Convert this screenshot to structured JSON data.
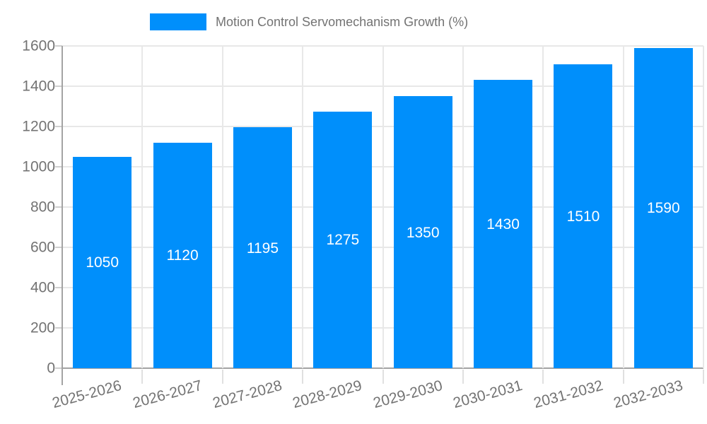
{
  "legend": {
    "items": [
      {
        "label": "Motion Control Servomechanism Growth (%)",
        "color": "#008FFB"
      }
    ]
  },
  "chart_data": {
    "type": "bar",
    "title": "Motion Control Servomechanism Growth (%)",
    "categories": [
      "2025-2026",
      "2026-2027",
      "2027-2028",
      "2028-2029",
      "2029-2030",
      "2030-2031",
      "2031-2032",
      "2032-2033"
    ],
    "values": [
      1050,
      1120,
      1195,
      1275,
      1350,
      1430,
      1510,
      1590
    ],
    "xlabel": "",
    "ylabel": "",
    "ylim": [
      0,
      1600
    ],
    "yticks": [
      0,
      200,
      400,
      600,
      800,
      1000,
      1200,
      1400,
      1600
    ],
    "grid": true,
    "legend_position": "top",
    "x_label_rotation": -15,
    "bar_color": "#008FFB",
    "value_label_color": "#FFFFFF"
  },
  "colors": {
    "bar": "#008FFB",
    "gridline": "#E8E8E8",
    "axis_line": "#A3A3A3",
    "tick": "#E0E0E0",
    "label_text": "#737373",
    "background": "#FFFFFF"
  }
}
